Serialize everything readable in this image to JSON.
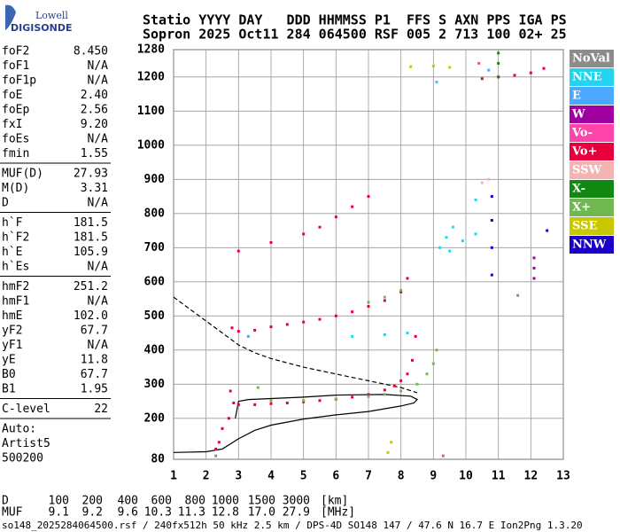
{
  "logo": {
    "top": "Lowell",
    "bottom": "DIGISONDE"
  },
  "header": {
    "line1": "Statio YYYY DAY   DDD HHMMSS P1  FFS S AXN PPS IGA PS",
    "line2": "Sopron 2025 Oct11 284 064500 RSF 005 2 713 100 02+ 25"
  },
  "params": [
    [
      [
        "foF2",
        "8.450"
      ],
      [
        "foF1",
        "N/A"
      ],
      [
        "foF1p",
        "N/A"
      ],
      [
        "foE",
        "2.40"
      ],
      [
        "foEp",
        "2.56"
      ],
      [
        "fxI",
        "9.20"
      ],
      [
        "foEs",
        "N/A"
      ],
      [
        "fmin",
        "1.55"
      ]
    ],
    [
      [
        "MUF(D)",
        "27.93"
      ],
      [
        "M(D)",
        "3.31"
      ],
      [
        "D",
        "N/A"
      ]
    ],
    [
      [
        "h`F",
        "181.5"
      ],
      [
        "h`F2",
        "181.5"
      ],
      [
        "h`E",
        "105.9"
      ],
      [
        "h`Es",
        "N/A"
      ]
    ],
    [
      [
        "hmF2",
        "251.2"
      ],
      [
        "hmF1",
        "N/A"
      ],
      [
        "hmE",
        "102.0"
      ],
      [
        "yF2",
        "67.7"
      ],
      [
        "yF1",
        "N/A"
      ],
      [
        "yE",
        "11.8"
      ],
      [
        "B0",
        "67.7"
      ],
      [
        "B1",
        "1.95"
      ]
    ],
    [
      [
        "C-level",
        "22"
      ]
    ]
  ],
  "auto": [
    "Auto:",
    "Artist5",
    "500200"
  ],
  "chart_data": {
    "type": "scatter",
    "xlim": [
      1,
      13
    ],
    "ylim": [
      80,
      1280
    ],
    "xticks": [
      1,
      2,
      3,
      4,
      5,
      6,
      7,
      8,
      9,
      10,
      11,
      12,
      13
    ],
    "yticks": [
      80,
      200,
      300,
      400,
      500,
      600,
      700,
      800,
      900,
      1000,
      1100,
      1200,
      1280
    ],
    "grid": true,
    "legend": "right",
    "series": [
      {
        "name": "NoVal",
        "color": "#8c8c8c",
        "x": [
          2.3,
          11.6
        ],
        "values": [
          90,
          560
        ]
      },
      {
        "name": "NNE",
        "color": "#22d4ee",
        "x": [
          9.2,
          9.4,
          9.6,
          9.9,
          10.3,
          9.5,
          6.5,
          7.5,
          8.2,
          10.3,
          9.1
        ],
        "values": [
          700,
          730,
          760,
          720,
          740,
          690,
          440,
          445,
          450,
          840,
          1185
        ]
      },
      {
        "name": "E",
        "color": "#4aa8ff",
        "x": [
          3.3,
          10.7
        ],
        "values": [
          440,
          1220
        ]
      },
      {
        "name": "W",
        "color": "#a000a0",
        "x": [
          12.1,
          12.1,
          12.1
        ],
        "values": [
          610,
          640,
          670
        ]
      },
      {
        "name": "Vo-",
        "color": "#ff44aa",
        "x": [
          9.3,
          10.4
        ],
        "values": [
          90,
          1240
        ]
      },
      {
        "name": "Vo+",
        "color": "#e8003c",
        "x": [
          2.7,
          2.75,
          2.85,
          3.0,
          3.5,
          4.0,
          4.5,
          5.0,
          5.5,
          6.0,
          6.5,
          7.0,
          7.5,
          7.8,
          8.0,
          8.2,
          8.35,
          8.45,
          2.8,
          3.0,
          3.5,
          4.0,
          4.5,
          5.0,
          5.5,
          6.0,
          6.5,
          7.0,
          7.5,
          8.0,
          8.2,
          3.0,
          4.0,
          5.0,
          5.5,
          6.0,
          6.5,
          7.0,
          10.5,
          11.0,
          11.5,
          12.0,
          12.4,
          2.5,
          2.4,
          2.3
        ],
        "values": [
          200,
          280,
          245,
          240,
          240,
          243,
          245,
          248,
          252,
          256,
          262,
          270,
          283,
          295,
          310,
          330,
          370,
          440,
          465,
          455,
          458,
          468,
          475,
          482,
          490,
          500,
          512,
          528,
          545,
          570,
          610,
          690,
          715,
          740,
          760,
          790,
          820,
          850,
          1195,
          1200,
          1205,
          1212,
          1225,
          170,
          130,
          110
        ]
      },
      {
        "name": "SSW",
        "color": "#f4b4b4",
        "x": [
          10.5,
          10.7
        ],
        "values": [
          890,
          900
        ]
      },
      {
        "name": "X-",
        "color": "#118811",
        "x": [
          11.0,
          11.0,
          11.0
        ],
        "values": [
          1200,
          1240,
          1270
        ]
      },
      {
        "name": "X+",
        "color": "#72b852",
        "x": [
          3.6,
          4.0,
          5.0,
          6.0,
          7.0,
          7.5,
          8.0,
          8.5,
          8.8,
          9.0,
          9.1,
          7.0,
          7.5,
          8.0
        ],
        "values": [
          290,
          252,
          252,
          256,
          264,
          270,
          280,
          300,
          330,
          360,
          400,
          540,
          555,
          575
        ]
      },
      {
        "name": "SSE",
        "color": "#c8c800",
        "x": [
          7.6,
          7.7,
          8.3,
          9.0,
          9.5
        ],
        "values": [
          100,
          130,
          1230,
          1232,
          1228
        ]
      },
      {
        "name": "NNW",
        "color": "#1a00c8",
        "x": [
          10.8,
          10.8,
          10.8,
          10.8,
          12.5
        ],
        "values": [
          620,
          700,
          780,
          850,
          750
        ]
      }
    ],
    "lines": [
      {
        "style": "solid",
        "color": "#000000",
        "x": [
          1.0,
          2.0,
          2.5,
          3.0,
          3.5,
          4.0,
          5.0,
          6.0,
          7.0,
          8.0,
          8.4,
          8.5,
          8.3,
          7.5,
          6.0,
          5.0,
          4.0,
          3.3,
          3.0,
          2.9
        ],
        "values": [
          100,
          102,
          110,
          140,
          165,
          180,
          198,
          210,
          220,
          236,
          245,
          255,
          265,
          270,
          268,
          262,
          258,
          255,
          250,
          200
        ]
      },
      {
        "style": "dashed",
        "color": "#000000",
        "x": [
          1.0,
          1.5,
          2.0,
          2.5,
          3.0,
          3.5,
          4.0,
          5.0,
          6.0,
          7.0,
          8.0,
          8.5
        ],
        "values": [
          555,
          520,
          485,
          450,
          415,
          392,
          375,
          350,
          330,
          310,
          290,
          275
        ]
      }
    ]
  },
  "muf_table": {
    "d_label": "D",
    "d_values": [
      "100",
      "200",
      "400",
      "600",
      "800",
      "1000",
      "1500",
      "3000"
    ],
    "d_unit": "[km]",
    "muf_label": "MUF",
    "muf_values": [
      "9.1",
      "9.2",
      "9.6",
      "10.3",
      "11.3",
      "12.8",
      "17.0",
      "27.9"
    ],
    "muf_unit": "[MHz]"
  },
  "footer": "so148_2025284064500.rsf / 240fx512h 50 kHz 2.5 km / DPS-4D SO148 147 / 47.6 N 16.7 E Ion2Png 1.3.20"
}
